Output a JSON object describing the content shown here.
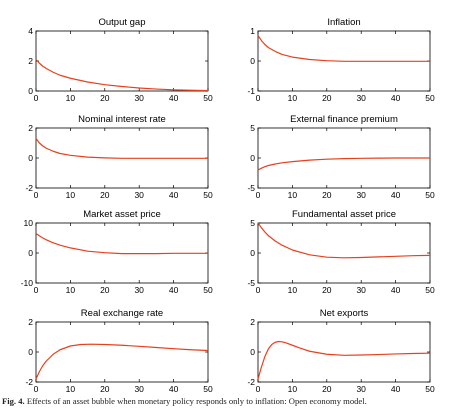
{
  "caption": {
    "label": "Fig. 4.",
    "text": "Effects of an asset bubble when monetary policy responds only to inflation: Open economy model."
  },
  "colors": {
    "line": "#e8401c",
    "axis": "#000000"
  },
  "chart_data": [
    {
      "type": "line",
      "title": "Output gap",
      "xlabel": "",
      "ylabel": "",
      "xlim": [
        0,
        50
      ],
      "ylim": [
        0,
        4
      ],
      "xticks": [
        0,
        10,
        20,
        30,
        40,
        50
      ],
      "yticks": [
        0,
        2,
        4
      ],
      "series": [
        {
          "x": [
            0,
            1,
            2,
            3,
            5,
            7,
            10,
            15,
            20,
            25,
            30,
            35,
            40,
            45,
            50
          ],
          "y": [
            2.1,
            1.85,
            1.65,
            1.5,
            1.25,
            1.05,
            0.85,
            0.6,
            0.42,
            0.3,
            0.2,
            0.13,
            0.08,
            0.05,
            0.03
          ]
        }
      ]
    },
    {
      "type": "line",
      "title": "Inflation",
      "xlabel": "",
      "ylabel": "",
      "xlim": [
        0,
        50
      ],
      "ylim": [
        -1,
        1
      ],
      "xticks": [
        0,
        10,
        20,
        30,
        40,
        50
      ],
      "yticks": [
        -1,
        0,
        1
      ],
      "series": [
        {
          "x": [
            0,
            1,
            2,
            3,
            5,
            7,
            10,
            15,
            20,
            25,
            30,
            35,
            40,
            45,
            50
          ],
          "y": [
            0.85,
            0.68,
            0.55,
            0.45,
            0.32,
            0.22,
            0.13,
            0.05,
            0.01,
            -0.01,
            -0.01,
            -0.01,
            -0.01,
            -0.01,
            -0.01
          ]
        }
      ]
    },
    {
      "type": "line",
      "title": "Nominal interest rate",
      "xlabel": "",
      "ylabel": "",
      "xlim": [
        0,
        50
      ],
      "ylim": [
        -2,
        2
      ],
      "xticks": [
        0,
        10,
        20,
        30,
        40,
        50
      ],
      "yticks": [
        -2,
        0,
        2
      ],
      "series": [
        {
          "x": [
            0,
            1,
            2,
            3,
            5,
            7,
            10,
            15,
            20,
            25,
            30,
            35,
            40,
            45,
            50
          ],
          "y": [
            1.3,
            1.0,
            0.8,
            0.65,
            0.45,
            0.3,
            0.18,
            0.06,
            0.01,
            -0.02,
            -0.02,
            -0.02,
            -0.02,
            -0.02,
            -0.02
          ]
        }
      ]
    },
    {
      "type": "line",
      "title": "External finance premium",
      "xlabel": "",
      "ylabel": "",
      "xlim": [
        0,
        50
      ],
      "ylim": [
        -5,
        5
      ],
      "xticks": [
        0,
        10,
        20,
        30,
        40,
        50
      ],
      "yticks": [
        -5,
        0,
        5
      ],
      "series": [
        {
          "x": [
            0,
            1,
            2,
            3,
            5,
            7,
            10,
            15,
            20,
            25,
            30,
            35,
            40,
            45,
            50
          ],
          "y": [
            -2.0,
            -1.7,
            -1.45,
            -1.25,
            -1.0,
            -0.8,
            -0.6,
            -0.35,
            -0.2,
            -0.1,
            -0.05,
            -0.02,
            0.0,
            0.0,
            0.0
          ]
        }
      ]
    },
    {
      "type": "line",
      "title": "Market asset price",
      "xlabel": "",
      "ylabel": "",
      "xlim": [
        0,
        50
      ],
      "ylim": [
        -10,
        10
      ],
      "xticks": [
        0,
        10,
        20,
        30,
        40,
        50
      ],
      "yticks": [
        -10,
        0,
        10
      ],
      "series": [
        {
          "x": [
            0,
            1,
            2,
            3,
            5,
            7,
            10,
            15,
            20,
            25,
            30,
            35,
            40,
            45,
            50
          ],
          "y": [
            6.5,
            5.7,
            5.0,
            4.4,
            3.4,
            2.6,
            1.7,
            0.6,
            0.1,
            -0.2,
            -0.2,
            -0.2,
            -0.1,
            -0.1,
            -0.1
          ]
        }
      ]
    },
    {
      "type": "line",
      "title": "Fundamental asset price",
      "xlabel": "",
      "ylabel": "",
      "xlim": [
        0,
        50
      ],
      "ylim": [
        -5,
        5
      ],
      "xticks": [
        0,
        10,
        20,
        30,
        40,
        50
      ],
      "yticks": [
        -5,
        0,
        5
      ],
      "series": [
        {
          "x": [
            0,
            1,
            2,
            3,
            5,
            7,
            10,
            15,
            20,
            25,
            30,
            35,
            40,
            45,
            50
          ],
          "y": [
            5.0,
            4.2,
            3.5,
            2.9,
            2.0,
            1.3,
            0.5,
            -0.3,
            -0.7,
            -0.8,
            -0.75,
            -0.65,
            -0.55,
            -0.45,
            -0.4
          ]
        }
      ]
    },
    {
      "type": "line",
      "title": "Real exchange rate",
      "xlabel": "",
      "ylabel": "",
      "xlim": [
        0,
        50
      ],
      "ylim": [
        -2,
        2
      ],
      "xticks": [
        0,
        10,
        20,
        30,
        40,
        50
      ],
      "yticks": [
        -2,
        0,
        2
      ],
      "series": [
        {
          "x": [
            0,
            1,
            2,
            3,
            5,
            7,
            10,
            13,
            16,
            20,
            25,
            30,
            35,
            40,
            45,
            50
          ],
          "y": [
            -1.8,
            -1.3,
            -0.9,
            -0.6,
            -0.15,
            0.15,
            0.4,
            0.5,
            0.52,
            0.5,
            0.45,
            0.38,
            0.3,
            0.22,
            0.15,
            0.1
          ]
        }
      ]
    },
    {
      "type": "line",
      "title": "Net exports",
      "xlabel": "",
      "ylabel": "",
      "xlim": [
        0,
        50
      ],
      "ylim": [
        -2,
        2
      ],
      "xticks": [
        0,
        10,
        20,
        30,
        40,
        50
      ],
      "yticks": [
        -2,
        0,
        2
      ],
      "series": [
        {
          "x": [
            0,
            1,
            2,
            3,
            4,
            5,
            6,
            7,
            8,
            10,
            12,
            15,
            20,
            25,
            30,
            35,
            40,
            45,
            50
          ],
          "y": [
            -1.8,
            -1.0,
            -0.3,
            0.2,
            0.5,
            0.65,
            0.7,
            0.68,
            0.62,
            0.45,
            0.28,
            0.05,
            -0.15,
            -0.22,
            -0.2,
            -0.17,
            -0.13,
            -0.1,
            -0.08
          ]
        }
      ]
    }
  ]
}
